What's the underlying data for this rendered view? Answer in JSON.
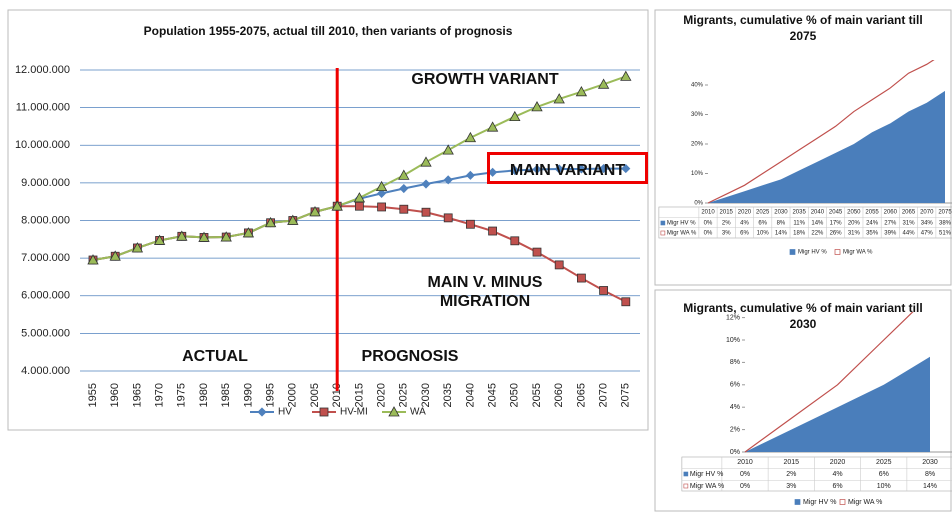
{
  "chart_data": [
    {
      "type": "line",
      "title": "Population 1955-2075,  actual till 2010, then variants of prognosis",
      "categories": [
        "1955",
        "1960",
        "1965",
        "1970",
        "1975",
        "1980",
        "1985",
        "1990",
        "1995",
        "2000",
        "2005",
        "2010",
        "2015",
        "2020",
        "2025",
        "2030",
        "2035",
        "2040",
        "2045",
        "2050",
        "2055",
        "2060",
        "2065",
        "2070",
        "2075"
      ],
      "series": [
        {
          "name": "HV",
          "color": "#4f81bd",
          "marker": "diamond",
          "values": [
            6950000,
            7050000,
            7270000,
            7470000,
            7580000,
            7550000,
            7560000,
            7670000,
            7940000,
            8000000,
            8230000,
            8380000,
            8580000,
            8720000,
            8850000,
            8970000,
            9080000,
            9200000,
            9280000,
            9330000,
            9360000,
            9370000,
            9370000,
            9380000,
            9380000
          ]
        },
        {
          "name": "HV-MI",
          "color": "#c0504d",
          "marker": "square",
          "values": [
            6950000,
            7050000,
            7270000,
            7470000,
            7580000,
            7550000,
            7560000,
            7670000,
            7940000,
            8000000,
            8230000,
            8380000,
            8380000,
            8360000,
            8300000,
            8220000,
            8070000,
            7900000,
            7720000,
            7460000,
            7160000,
            6820000,
            6470000,
            6140000,
            5840000
          ]
        },
        {
          "name": "WA",
          "color": "#9bbb59",
          "marker": "triangle",
          "values": [
            6950000,
            7050000,
            7270000,
            7470000,
            7580000,
            7550000,
            7560000,
            7670000,
            7940000,
            8000000,
            8230000,
            8380000,
            8600000,
            8900000,
            9200000,
            9550000,
            9870000,
            10200000,
            10480000,
            10760000,
            11020000,
            11230000,
            11420000,
            11620000,
            11830000
          ]
        }
      ],
      "ylim": [
        4000000,
        12000000
      ],
      "yticks": [
        {
          "value": 4000000,
          "label": "4.000.000"
        },
        {
          "value": 5000000,
          "label": "5.000.000"
        },
        {
          "value": 6000000,
          "label": "6.000.000"
        },
        {
          "value": 7000000,
          "label": "7.000.000"
        },
        {
          "value": 8000000,
          "label": "8.000.000"
        },
        {
          "value": 9000000,
          "label": "9.000.000"
        },
        {
          "value": 10000000,
          "label": "10.000.000"
        },
        {
          "value": 11000000,
          "label": "11.000.000"
        },
        {
          "value": 12000000,
          "label": "12.000.000"
        }
      ],
      "grid": true,
      "legend": "bottom",
      "annotations": [
        "GROWTH VARIANT",
        "MAIN VARIANT",
        "MAIN V. MINUS MIGRATION",
        "ACTUAL",
        "PROGNOSIS"
      ]
    },
    {
      "type": "area",
      "title": "Migrants, cumulative % of main variant till 2075",
      "categories": [
        "2010",
        "2015",
        "2020",
        "2025",
        "2030",
        "2035",
        "2040",
        "2045",
        "2050",
        "2055",
        "2060",
        "2065",
        "2070",
        "2075"
      ],
      "series": [
        {
          "name": "Migr HV %",
          "color": "#4a7ebb",
          "style": "area",
          "values": [
            0,
            2,
            4,
            6,
            8,
            11,
            14,
            17,
            20,
            24,
            27,
            31,
            34,
            38
          ],
          "value_labels": [
            "0%",
            "2%",
            "4%",
            "6%",
            "8%",
            "11%",
            "14%",
            "17%",
            "20%",
            "24%",
            "27%",
            "31%",
            "34%",
            "38%"
          ]
        },
        {
          "name": "Migr WA %",
          "color": "#c0504d",
          "style": "line",
          "values": [
            0,
            3,
            6,
            10,
            14,
            18,
            22,
            26,
            31,
            35,
            39,
            44,
            47,
            51
          ],
          "value_labels": [
            "0%",
            "3%",
            "6%",
            "10%",
            "14%",
            "18%",
            "22%",
            "26%",
            "31%",
            "35%",
            "39%",
            "44%",
            "47%",
            "51%"
          ]
        }
      ],
      "ylim": [
        0,
        45
      ],
      "yticks": [
        {
          "value": 0,
          "label": "0%"
        },
        {
          "value": 10,
          "label": "10%"
        },
        {
          "value": 20,
          "label": "20%"
        },
        {
          "value": 30,
          "label": "30%"
        },
        {
          "value": 40,
          "label": "40%"
        }
      ],
      "legend": "bottom"
    },
    {
      "type": "area",
      "title": "Migrants, cumulative % of main variant till 2030",
      "categories": [
        "2010",
        "2015",
        "2020",
        "2025",
        "2030"
      ],
      "series": [
        {
          "name": "Migr HV %",
          "color": "#4a7ebb",
          "style": "area",
          "values": [
            0,
            2,
            4,
            6,
            8.5
          ],
          "value_labels": [
            "0%",
            "2%",
            "4%",
            "6%",
            "8%"
          ]
        },
        {
          "name": "Migr WA %",
          "color": "#c0504d",
          "style": "line",
          "values": [
            0,
            3,
            6,
            10,
            14
          ],
          "value_labels": [
            "0%",
            "3%",
            "6%",
            "10%",
            "14%"
          ]
        }
      ],
      "ylim": [
        0,
        12
      ],
      "yticks": [
        {
          "value": 0,
          "label": "0%"
        },
        {
          "value": 2,
          "label": "2%"
        },
        {
          "value": 4,
          "label": "4%"
        },
        {
          "value": 6,
          "label": "6%"
        },
        {
          "value": 8,
          "label": "8%"
        },
        {
          "value": 10,
          "label": "10%"
        },
        {
          "value": 12,
          "label": "12%"
        }
      ],
      "legend": "bottom"
    }
  ]
}
